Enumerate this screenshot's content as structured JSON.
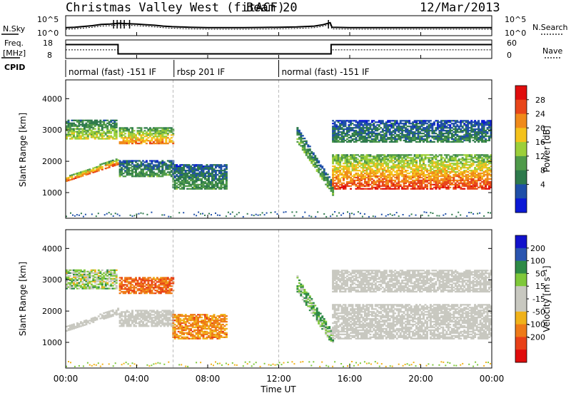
{
  "header": {
    "station": "Christmas Valley West (fitACF)",
    "beam": "Beam 20",
    "date": "12/Mar/2013"
  },
  "colors": {
    "power_scale": [
      "#0b19d6",
      "#1f4fa8",
      "#2e7a4c",
      "#4f9a4a",
      "#9ccf3a",
      "#f4c21c",
      "#f08a1a",
      "#e8461a",
      "#e00d0d"
    ],
    "velocity_scale": [
      "#1212cc",
      "#2a55b0",
      "#2e8a46",
      "#7fc83a",
      "#c8c8c0",
      "#c8c8c0",
      "#f0b21a",
      "#ee7a18",
      "#e84018",
      "#e00c0c"
    ]
  },
  "chart_data": {
    "type": "heatmap",
    "x_axis": {
      "label": "Time UT",
      "ticks": [
        "00:00",
        "04:00",
        "08:00",
        "12:00",
        "16:00",
        "20:00",
        "00:00"
      ],
      "range_hours": [
        0,
        24
      ]
    },
    "noise_panel": {
      "left_label": "N.Sky",
      "right_label": "N.Search",
      "left_ticks": [
        "10^5",
        "10^0"
      ],
      "right_ticks": [
        "10^5",
        "10^0"
      ],
      "sky_x": [
        0,
        0.5,
        1,
        1.5,
        2,
        2.5,
        3,
        3.5,
        4,
        4.5,
        5,
        5.5,
        6,
        7,
        8,
        9,
        10,
        11,
        12,
        13,
        14,
        14.5,
        14.9,
        15,
        16,
        18,
        20,
        22,
        24
      ],
      "sky_y": [
        0.4,
        0.42,
        0.46,
        0.5,
        0.56,
        0.58,
        0.62,
        0.6,
        0.58,
        0.55,
        0.52,
        0.48,
        0.45,
        0.42,
        0.4,
        0.4,
        0.4,
        0.41,
        0.42,
        0.44,
        0.48,
        0.55,
        0.65,
        0.42,
        0.4,
        0.4,
        0.4,
        0.4,
        0.4
      ],
      "spikes_hours": [
        2.7,
        2.9,
        3.1,
        3.3,
        3.6,
        14.8
      ]
    },
    "freq_panel": {
      "left_label": "Freq.",
      "left_unit": "[MHz]",
      "right_label": "Nave",
      "left_ticks": [
        "18",
        "8"
      ],
      "right_ticks": [
        "60",
        "0"
      ],
      "freq_x": [
        0,
        2.95,
        2.95,
        14.95,
        14.95,
        24
      ],
      "freq_mhz": [
        15.5,
        15.5,
        10.5,
        10.5,
        15.5,
        15.5
      ],
      "nave_x": [
        0,
        2.95,
        2.95,
        14.95,
        14.95,
        24
      ],
      "nave": [
        28,
        28,
        16,
        16,
        28,
        28
      ]
    },
    "cpid": {
      "label": "CPID",
      "segments": [
        {
          "start_hour": 0,
          "end_hour": 6.1,
          "text": "normal (fast) -151 IF"
        },
        {
          "start_hour": 6.1,
          "end_hour": 12.0,
          "text": "rbsp 201 IF"
        },
        {
          "start_hour": 12.0,
          "end_hour": 24,
          "text": "normal (fast) -151 IF"
        }
      ]
    },
    "power_panel": {
      "ylabel": "Slant Range [km]",
      "yticks": [
        1000,
        2000,
        3000,
        4000
      ],
      "ylim": [
        180,
        4600
      ],
      "colorbar_label": "Power [dB]",
      "colorbar_ticks": [
        "28",
        "24",
        "20",
        "16",
        "12",
        "8",
        "4"
      ],
      "colorbar_range": [
        0,
        32
      ]
    },
    "velocity_panel": {
      "ylabel": "Slant Range [km]",
      "yticks": [
        1000,
        2000,
        3000,
        4000
      ],
      "ylim": [
        180,
        4600
      ],
      "colorbar_label": "Velocity [m s⁻¹]",
      "colorbar_ticks": [
        "200",
        "100",
        "50",
        "15",
        "-15",
        "-50",
        "-100",
        "-200"
      ]
    },
    "features": [
      {
        "name": "lower band",
        "start_hour": 0,
        "end_hour": 3.0,
        "range_start_km": [
          1350,
          1500,
          1700
        ],
        "range_end_km": [
          1900,
          2100,
          2300
        ],
        "power_db": 26,
        "velocity": 0
      },
      {
        "name": "upper band",
        "start_hour": 0,
        "end_hour": 2.9,
        "range_km": [
          2700,
          3300
        ],
        "power_db": 18,
        "velocity": 20
      },
      {
        "name": "mid patch",
        "start_hour": 3.0,
        "end_hour": 6.0,
        "range_km": [
          2550,
          3050
        ],
        "power_db": 24,
        "velocity": -90
      },
      {
        "name": "late band",
        "start_hour": 3.0,
        "end_hour": 6.0,
        "range_km": [
          1500,
          2000
        ],
        "power_db": 12,
        "velocity": 0
      },
      {
        "name": "rbsp patch",
        "start_hour": 6.0,
        "end_hour": 9.0,
        "range_km": [
          1100,
          1900
        ],
        "power_db": 12,
        "velocity": -60
      },
      {
        "name": "diagonal",
        "start_hour": 13.0,
        "end_hour": 15.0,
        "range_start_km": [
          2600,
          3100
        ],
        "range_end_km": [
          900,
          1300
        ],
        "power_db": 14,
        "velocity": 40
      },
      {
        "name": "evening band",
        "start_hour": 15.0,
        "end_hour": 24.0,
        "range_km": [
          1100,
          2200
        ],
        "power_db": 28,
        "velocity": 0
      },
      {
        "name": "evening upper",
        "start_hour": 15.0,
        "end_hour": 24.0,
        "range_km": [
          2600,
          3300
        ],
        "power_db": 10,
        "velocity": 0
      }
    ]
  }
}
